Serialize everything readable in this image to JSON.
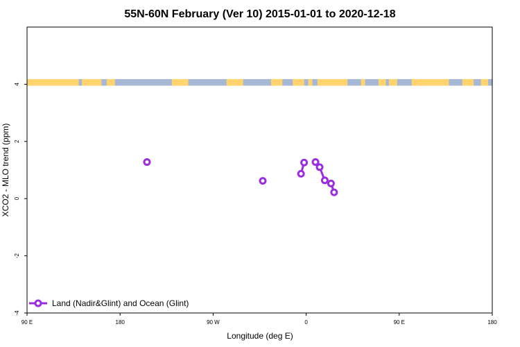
{
  "chart_data": {
    "type": "line",
    "title": "55N-60N February (Ver 10)   2015-01-01 to 2020-12-18",
    "xlabel": "Longitude (deg E)",
    "ylabel": "XCO2 - MLO trend (ppm)",
    "xlim": [
      90,
      540
    ],
    "ylim": [
      -4,
      6
    ],
    "x_ticks": [
      {
        "value": 90,
        "label": "90 E"
      },
      {
        "value": 180,
        "label": "180"
      },
      {
        "value": 270,
        "label": "90 W"
      },
      {
        "value": 360,
        "label": "0"
      },
      {
        "value": 450,
        "label": "90 E"
      },
      {
        "value": 540,
        "label": "180"
      }
    ],
    "y_ticks": [
      {
        "value": -4,
        "label": "-4"
      },
      {
        "value": -2,
        "label": "-2"
      },
      {
        "value": 0,
        "label": "0"
      },
      {
        "value": 2,
        "label": "2"
      },
      {
        "value": 4,
        "label": "4"
      }
    ],
    "series": [
      {
        "name": "Land (Nadir&Glint) and Ocean (Glint)",
        "color": "#9b2de0",
        "segments": [
          [
            {
              "x": 206,
              "y": 1.28
            }
          ],
          [
            {
              "x": 318,
              "y": 0.62
            }
          ],
          [
            {
              "x": 355,
              "y": 0.87
            },
            {
              "x": 358,
              "y": 1.26
            }
          ],
          [
            {
              "x": 369,
              "y": 1.28
            },
            {
              "x": 373,
              "y": 1.1
            },
            {
              "x": 378,
              "y": 0.64
            },
            {
              "x": 384,
              "y": 0.53
            },
            {
              "x": 387,
              "y": 0.22
            }
          ]
        ]
      }
    ],
    "legend_position": "bottom-left",
    "map_strip": {
      "y_range": [
        3.95,
        4.18
      ],
      "land_color": "#ffd36e",
      "ocean_color": "#a6b8d6",
      "land_ranges": [
        [
          90,
          140
        ],
        [
          143,
          162
        ],
        [
          167,
          175
        ],
        [
          230,
          246
        ],
        [
          283,
          299
        ],
        [
          326,
          337
        ],
        [
          347,
          358
        ],
        [
          362,
          366
        ],
        [
          371,
          400
        ],
        [
          413,
          417
        ],
        [
          430,
          437
        ],
        [
          440,
          448
        ],
        [
          462,
          498
        ],
        [
          511,
          522
        ],
        [
          529,
          536
        ]
      ]
    }
  }
}
